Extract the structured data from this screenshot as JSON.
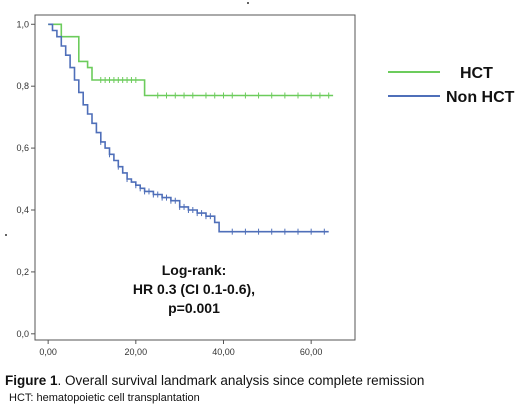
{
  "chart_data": {
    "type": "line",
    "subtype": "kaplan-meier",
    "x_ticks": [
      "0,00",
      "20,00",
      "40,00",
      "60,00"
    ],
    "y_ticks": [
      "0,0",
      "0,2",
      "0,4",
      "0,6",
      "0,8",
      "1,0"
    ],
    "xlim": [
      -3,
      70
    ],
    "ylim": [
      -0.02,
      1.03
    ],
    "grid": false,
    "legend_position": "right",
    "series": [
      {
        "name": "HCT",
        "color": "#6ccc5c",
        "steps": [
          [
            0,
            1.0
          ],
          [
            3,
            0.96
          ],
          [
            7,
            0.88
          ],
          [
            9,
            0.86
          ],
          [
            10,
            0.82
          ],
          [
            22,
            0.77
          ],
          [
            65,
            0.77
          ]
        ],
        "censor_x": [
          12,
          13,
          14,
          15,
          16,
          17,
          18,
          19,
          20,
          25,
          27,
          29,
          31,
          33,
          36,
          38,
          40,
          42,
          45,
          48,
          51,
          54,
          57,
          60,
          62,
          64
        ]
      },
      {
        "name": "Non HCT",
        "color": "#4f6fb9",
        "steps": [
          [
            0,
            1.0
          ],
          [
            1,
            0.98
          ],
          [
            2,
            0.96
          ],
          [
            3,
            0.93
          ],
          [
            4,
            0.9
          ],
          [
            5,
            0.86
          ],
          [
            6,
            0.82
          ],
          [
            7,
            0.78
          ],
          [
            8,
            0.74
          ],
          [
            9,
            0.71
          ],
          [
            10,
            0.68
          ],
          [
            11,
            0.65
          ],
          [
            12,
            0.62
          ],
          [
            13,
            0.6
          ],
          [
            14,
            0.58
          ],
          [
            15,
            0.56
          ],
          [
            16,
            0.54
          ],
          [
            17,
            0.52
          ],
          [
            18,
            0.5
          ],
          [
            19,
            0.49
          ],
          [
            20,
            0.48
          ],
          [
            21,
            0.47
          ],
          [
            22,
            0.46
          ],
          [
            24,
            0.45
          ],
          [
            26,
            0.44
          ],
          [
            28,
            0.43
          ],
          [
            30,
            0.41
          ],
          [
            32,
            0.4
          ],
          [
            34,
            0.39
          ],
          [
            36,
            0.38
          ],
          [
            38,
            0.36
          ],
          [
            39,
            0.33
          ],
          [
            64,
            0.33
          ]
        ],
        "censor_x": [
          12,
          14,
          16,
          18,
          20,
          21,
          22,
          23,
          24,
          25,
          26,
          27,
          28,
          29,
          30,
          31,
          32,
          33,
          34,
          35,
          36,
          37,
          42,
          45,
          48,
          51,
          54,
          57,
          60,
          63
        ]
      }
    ],
    "annotation": [
      "Log-rank:",
      "HR 0.3 (CI 0.1-0.6),",
      "p=0.001"
    ]
  },
  "caption": {
    "figure_label": "Figure 1",
    "text": ". Overall survival landmark analysis since complete remission",
    "footnote": "HCT: hematopoietic cell transplantation"
  }
}
